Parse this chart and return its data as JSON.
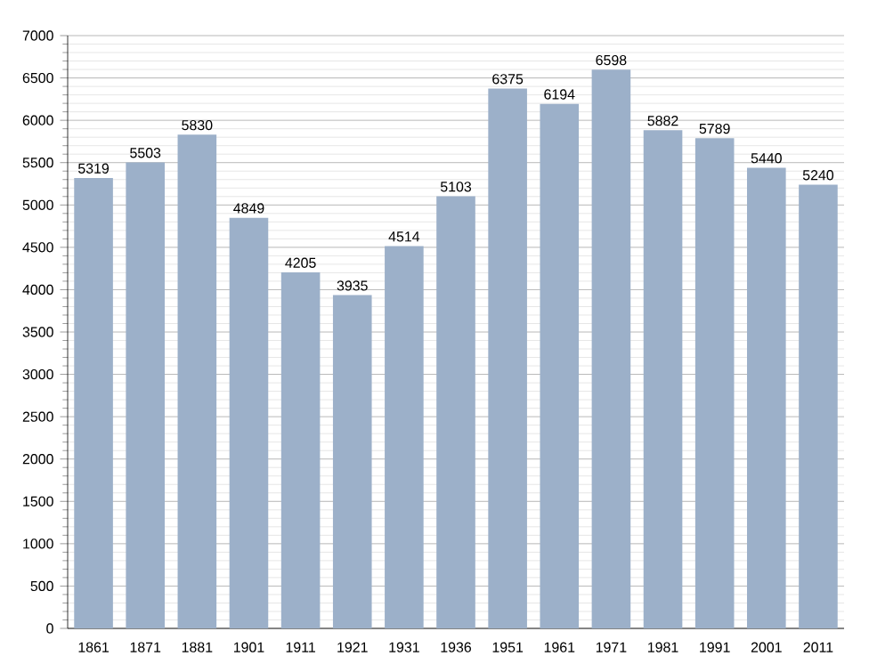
{
  "chart_data": {
    "type": "bar",
    "categories": [
      "1861",
      "1871",
      "1881",
      "1901",
      "1911",
      "1921",
      "1931",
      "1936",
      "1951",
      "1961",
      "1971",
      "1981",
      "1991",
      "2001",
      "2011"
    ],
    "values": [
      5319,
      5503,
      5830,
      4849,
      4205,
      3935,
      4514,
      5103,
      6375,
      6194,
      6598,
      5882,
      5789,
      5440,
      5240
    ],
    "color": "#9cb0c9",
    "ylim": [
      0,
      7000
    ],
    "yticks": [
      0,
      500,
      1000,
      1500,
      2000,
      2500,
      3000,
      3500,
      4000,
      4500,
      5000,
      5500,
      6000,
      6500,
      7000
    ],
    "grid": "y",
    "data_labels": true
  }
}
